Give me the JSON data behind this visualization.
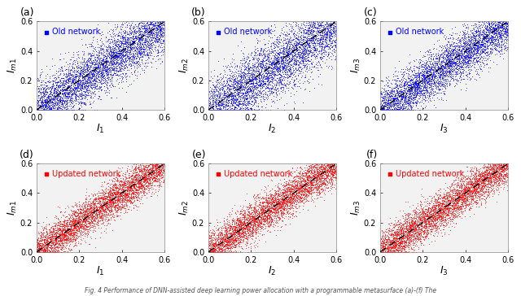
{
  "n_points": 5000,
  "seed": 42,
  "xlim": [
    0.0,
    0.6
  ],
  "ylim": [
    0.0,
    0.6
  ],
  "xticks": [
    0.0,
    0.2,
    0.4,
    0.6
  ],
  "yticks": [
    0.0,
    0.2,
    0.4,
    0.6
  ],
  "blue_color": "#0000ff",
  "red_color": "#ff0000",
  "marker_size": 0.5,
  "marker_alpha": 0.6,
  "dashed_line_color": "black",
  "panel_labels": [
    "(a)",
    "(b)",
    "(c)",
    "(d)",
    "(e)",
    "(f)"
  ],
  "xlabels": [
    "$I_1$",
    "$I_2$",
    "$I_3$",
    "$I_1$",
    "$I_2$",
    "$I_3$"
  ],
  "ylabels": [
    "$I_{m1}$",
    "$I_{m2}$",
    "$I_{m3}$",
    "$I_{m1}$",
    "$I_{m2}$",
    "$I_{m3}$"
  ],
  "legend_labels_top": [
    "Old network",
    "Old network",
    "Old network"
  ],
  "legend_labels_bot": [
    "Updated network",
    "Updated network",
    "Updated network"
  ],
  "spreads_old": [
    0.09,
    0.11,
    0.08
  ],
  "bias_old": [
    -0.01,
    -0.02,
    -0.01
  ],
  "spreads_new": [
    0.065,
    0.065,
    0.065
  ],
  "bias_new": [
    0.0,
    0.0,
    0.0
  ],
  "subplot_bg": "#f2f2f2",
  "fig_caption": "Fig. 4 Performance of DNN-assisted deep learning power allocation with a programmable metasurface (a)-(f) The",
  "tick_labelsize": 7,
  "label_fontsize": 9,
  "legend_fontsize": 7,
  "panel_label_fontsize": 9
}
